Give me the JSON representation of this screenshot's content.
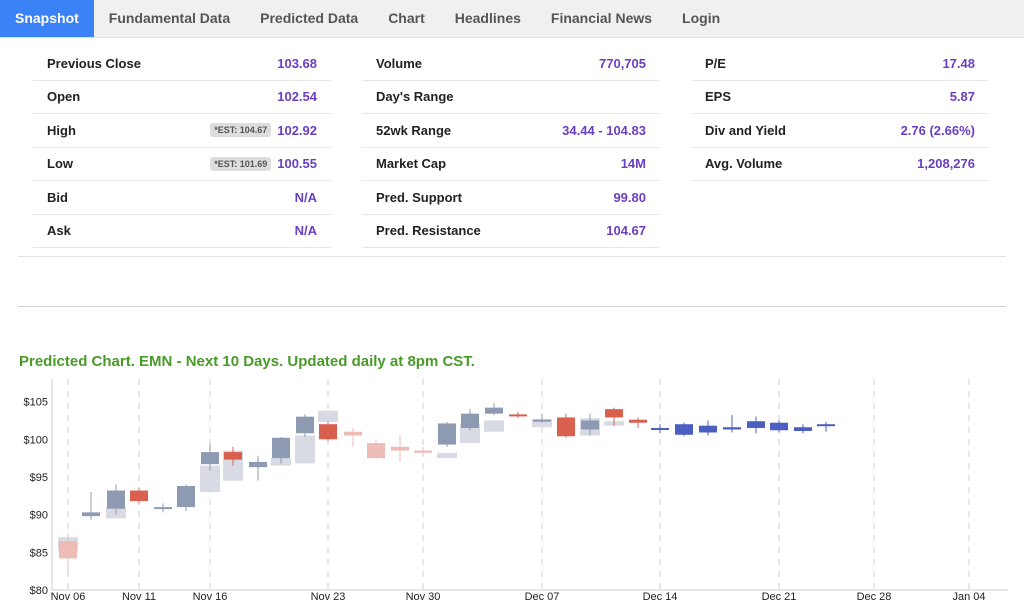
{
  "tabs": [
    "Snapshot",
    "Fundamental Data",
    "Predicted Data",
    "Chart",
    "Headlines",
    "Financial News",
    "Login"
  ],
  "stats": {
    "col1": [
      {
        "label": "Previous Close",
        "value": "103.68"
      },
      {
        "label": "Open",
        "value": "102.54"
      },
      {
        "label": "High",
        "value": "102.92",
        "est": "*EST: 104.67"
      },
      {
        "label": "Low",
        "value": "100.55",
        "est": "*EST: 101.69"
      },
      {
        "label": "Bid",
        "value": "N/A"
      },
      {
        "label": "Ask",
        "value": "N/A"
      }
    ],
    "col2": [
      {
        "label": "Volume",
        "value": "770,705"
      },
      {
        "label": "Day's Range",
        "value": ""
      },
      {
        "label": "52wk Range",
        "value": "34.44 - 104.83"
      },
      {
        "label": "Market Cap",
        "value": "14M"
      },
      {
        "label": "Pred. Support",
        "value": "99.80"
      },
      {
        "label": "Pred. Resistance",
        "value": "104.67"
      }
    ],
    "col3": [
      {
        "label": "P/E",
        "value": "17.48"
      },
      {
        "label": "EPS",
        "value": "5.87"
      },
      {
        "label": "Div and Yield",
        "value": "2.76 (2.66%)"
      },
      {
        "label": "Avg. Volume",
        "value": "1,208,276"
      }
    ]
  },
  "chart_title": "Predicted Chart. EMN - Next 10 Days. Updated daily at 8pm CST.",
  "chart_data": {
    "type": "candlestick",
    "ylim": [
      80,
      108
    ],
    "y_ticks": [
      "$80",
      "$85",
      "$90",
      "$95",
      "$100",
      "$105"
    ],
    "y_tick_values": [
      80,
      85,
      90,
      95,
      100,
      105
    ],
    "x_ticks": [
      "Nov 06",
      "Nov 11",
      "Nov 16",
      "Nov 23",
      "Nov 30",
      "Dec 07",
      "Dec 14",
      "Dec 21",
      "Dec 28",
      "Jan 04"
    ],
    "colors": {
      "up": "#8e99b2",
      "down": "#d9604f",
      "up_light": "#d8dbe3",
      "down_light": "#ecbcb5",
      "pred_up": "#4a5fbf",
      "pred_down": "#d9604f"
    },
    "candles": [
      {
        "d": 0,
        "o": 86.5,
        "c": 84.2,
        "h": 87.5,
        "l": 82.5,
        "t": "down"
      },
      {
        "d": 1,
        "o": 89.8,
        "c": 90.3,
        "h": 93.0,
        "l": 89.3,
        "t": "up"
      },
      {
        "d": 2,
        "o": 90.8,
        "c": 93.2,
        "h": 94.0,
        "l": 90.0,
        "t": "up"
      },
      {
        "d": 3,
        "o": 93.2,
        "c": 91.8,
        "h": 93.5,
        "l": 91.5,
        "t": "down"
      },
      {
        "d": 4,
        "o": 90.8,
        "c": 91.0,
        "h": 91.5,
        "l": 90.3,
        "t": "up"
      },
      {
        "d": 5,
        "o": 91.0,
        "c": 93.8,
        "h": 94.0,
        "l": 90.5,
        "t": "up"
      },
      {
        "d": 6,
        "o": 96.7,
        "c": 98.3,
        "h": 99.3,
        "l": 95.8,
        "t": "up"
      },
      {
        "d": 7,
        "o": 98.3,
        "c": 97.3,
        "h": 99.0,
        "l": 96.5,
        "t": "down"
      },
      {
        "d": 8,
        "o": 96.3,
        "c": 97.0,
        "h": 97.8,
        "l": 94.5,
        "t": "up"
      },
      {
        "d": 9,
        "o": 97.5,
        "c": 100.2,
        "h": 100.3,
        "l": 96.8,
        "t": "up"
      },
      {
        "d": 10,
        "o": 100.8,
        "c": 103.0,
        "h": 103.3,
        "l": 100.3,
        "t": "up"
      },
      {
        "d": 11,
        "o": 102.0,
        "c": 100.0,
        "h": 102.4,
        "l": 99.8,
        "t": "down"
      },
      {
        "d": 12,
        "o": 101.0,
        "c": 100.5,
        "h": 101.5,
        "l": 99.0,
        "t": "down"
      },
      {
        "d": 13,
        "o": 99.5,
        "c": 97.5,
        "h": 100.0,
        "l": 97.3,
        "t": "down"
      },
      {
        "d": 14,
        "o": 98.5,
        "c": 99.0,
        "h": 100.6,
        "l": 97.0,
        "t": "down"
      },
      {
        "d": 15,
        "o": 98.5,
        "c": 98.2,
        "h": 99.0,
        "l": 97.8,
        "t": "down"
      },
      {
        "d": 16,
        "o": 99.3,
        "c": 102.1,
        "h": 102.3,
        "l": 99.0,
        "t": "up"
      },
      {
        "d": 17,
        "o": 101.5,
        "c": 103.4,
        "h": 104.0,
        "l": 101.2,
        "t": "up"
      },
      {
        "d": 18,
        "o": 103.4,
        "c": 104.2,
        "h": 104.8,
        "l": 103.2,
        "t": "up"
      },
      {
        "d": 19,
        "o": 103.3,
        "c": 103.2,
        "h": 103.6,
        "l": 102.8,
        "t": "down"
      },
      {
        "d": 20,
        "o": 102.5,
        "c": 102.6,
        "h": 103.4,
        "l": 102.2,
        "t": "up"
      },
      {
        "d": 21,
        "o": 102.9,
        "c": 100.4,
        "h": 103.4,
        "l": 100.2,
        "t": "down"
      },
      {
        "d": 22,
        "o": 101.3,
        "c": 102.5,
        "h": 103.4,
        "l": 100.5,
        "t": "up"
      },
      {
        "d": 23,
        "o": 104.0,
        "c": 102.9,
        "h": 104.2,
        "l": 101.8,
        "t": "down"
      },
      {
        "d": 24,
        "o": 102.6,
        "c": 102.2,
        "h": 102.9,
        "l": 101.5,
        "t": "down"
      },
      {
        "d": 25,
        "o": 101.5,
        "c": 101.3,
        "h": 102.0,
        "l": 100.8,
        "t": "pred_up"
      },
      {
        "d": 26,
        "o": 100.6,
        "c": 102.0,
        "h": 102.2,
        "l": 100.4,
        "t": "pred_up"
      },
      {
        "d": 27,
        "o": 100.9,
        "c": 101.8,
        "h": 102.5,
        "l": 100.5,
        "t": "pred_up"
      },
      {
        "d": 28,
        "o": 101.3,
        "c": 101.6,
        "h": 103.2,
        "l": 100.9,
        "t": "pred_up"
      },
      {
        "d": 29,
        "o": 101.5,
        "c": 102.4,
        "h": 103.0,
        "l": 100.8,
        "t": "pred_up"
      },
      {
        "d": 30,
        "o": 101.2,
        "c": 102.2,
        "h": 102.5,
        "l": 100.9,
        "t": "pred_up"
      },
      {
        "d": 31,
        "o": 101.1,
        "c": 101.6,
        "h": 102.0,
        "l": 100.8,
        "t": "pred_up"
      },
      {
        "d": 32,
        "o": 101.8,
        "c": 102.0,
        "h": 102.3,
        "l": 101.0,
        "t": "pred_up"
      }
    ],
    "actual_up": [
      {
        "d": 0,
        "o": 85.2,
        "c": 87.0
      },
      {
        "d": 2,
        "o": 89.5,
        "c": 91.0
      },
      {
        "d": 6,
        "o": 93.0,
        "c": 96.5
      },
      {
        "d": 7,
        "o": 94.5,
        "c": 98.5
      },
      {
        "d": 9,
        "o": 96.5,
        "c": 97.5
      },
      {
        "d": 10,
        "o": 96.8,
        "c": 100.5
      },
      {
        "d": 11,
        "o": 102.3,
        "c": 103.8
      },
      {
        "d": 16,
        "o": 97.5,
        "c": 98.2
      },
      {
        "d": 17,
        "o": 99.5,
        "c": 102.0
      },
      {
        "d": 18,
        "o": 101.0,
        "c": 102.5
      },
      {
        "d": 20,
        "o": 101.6,
        "c": 102.7
      },
      {
        "d": 22,
        "o": 100.5,
        "c": 102.8
      },
      {
        "d": 23,
        "o": 101.8,
        "c": 102.4
      }
    ]
  }
}
